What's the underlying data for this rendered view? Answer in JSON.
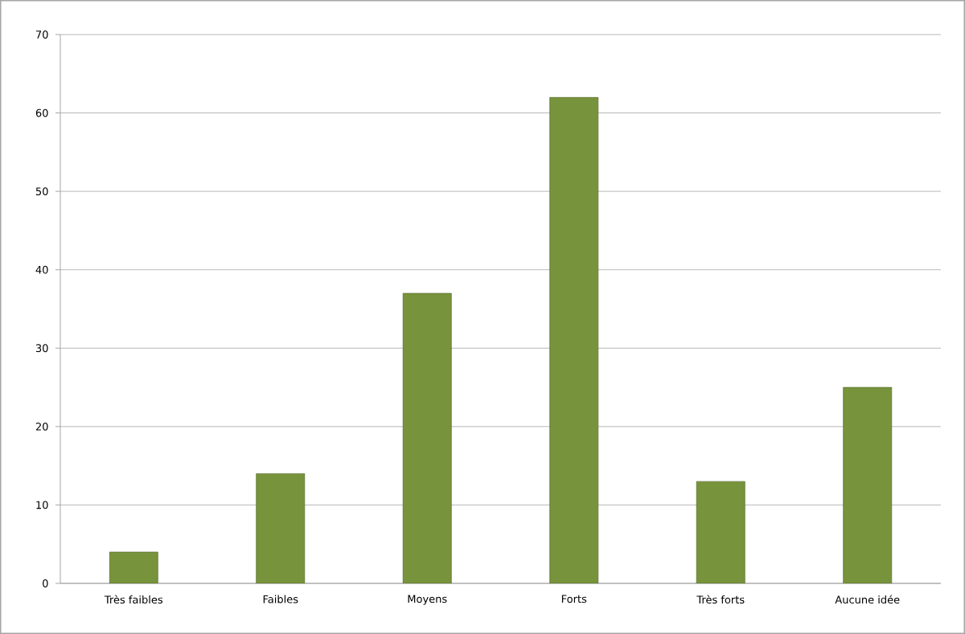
{
  "chart_data": {
    "type": "bar",
    "categories": [
      "Très faibles",
      "Faibles",
      "Moyens",
      "Forts",
      "Très forts",
      "Aucune idée"
    ],
    "values": [
      4,
      14,
      37,
      62,
      13,
      25
    ],
    "color": "#77933c",
    "ylim": [
      0,
      70
    ],
    "yticks": [
      0,
      10,
      20,
      30,
      40,
      50,
      60,
      70
    ],
    "grid": "y"
  }
}
